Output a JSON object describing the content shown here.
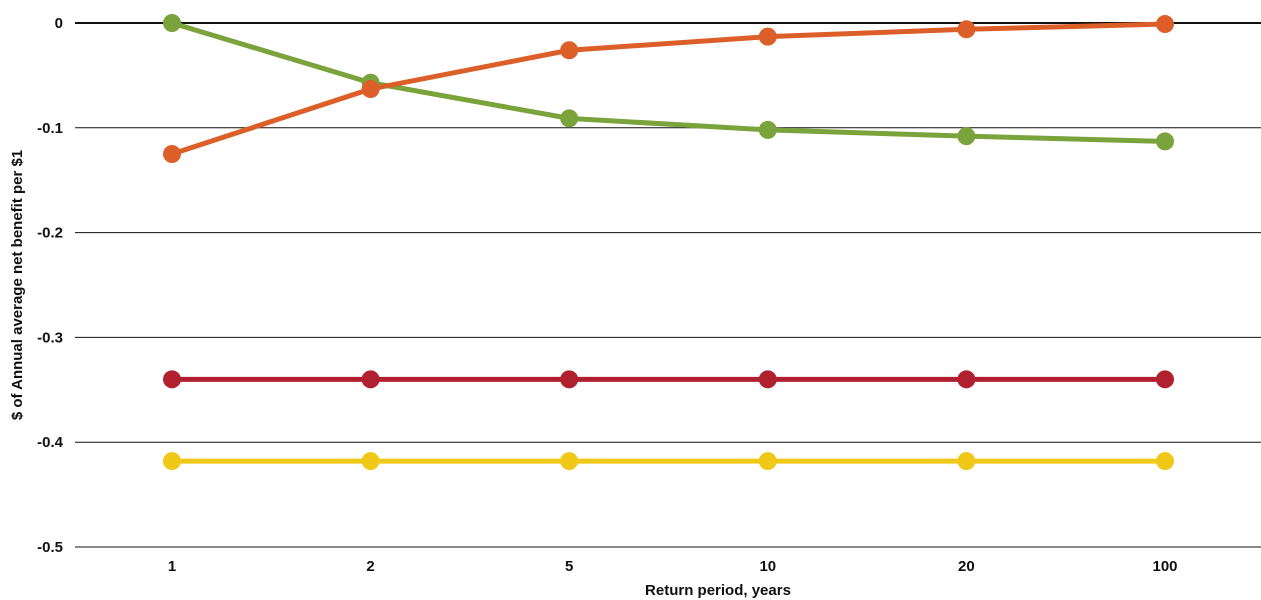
{
  "chart_data": {
    "type": "line",
    "xlabel": "Return period, years",
    "ylabel": "$ of Annual average net benefit per $1",
    "categories": [
      "1",
      "2",
      "5",
      "10",
      "20",
      "100"
    ],
    "ylim": [
      -0.5,
      0
    ],
    "yticks": [
      0,
      -0.1,
      -0.2,
      -0.3,
      -0.4,
      -0.5
    ],
    "ytick_labels": [
      "0",
      "-0.1",
      "-0.2",
      "-0.3",
      "-0.4",
      "-0.5"
    ],
    "grid": "horizontal",
    "legend": "none",
    "series": [
      {
        "color": "#7aa33c",
        "values": [
          0.0,
          -0.057,
          -0.091,
          -0.102,
          -0.108,
          -0.113
        ]
      },
      {
        "color": "#dc5f2a",
        "values": [
          -0.125,
          -0.063,
          -0.026,
          -0.013,
          -0.006,
          -0.001
        ]
      },
      {
        "color": "#b0202e",
        "values": [
          -0.34,
          -0.34,
          -0.34,
          -0.34,
          -0.34,
          -0.34
        ]
      },
      {
        "color": "#f0c818",
        "values": [
          -0.418,
          -0.418,
          -0.418,
          -0.418,
          -0.418,
          -0.418
        ]
      }
    ]
  }
}
